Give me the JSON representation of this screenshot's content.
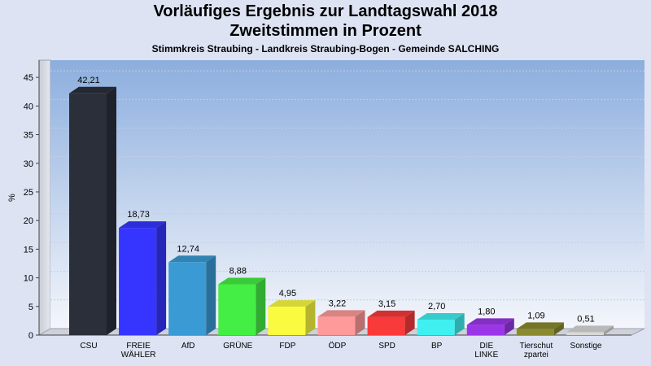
{
  "header": {
    "title": "Vorläufiges Ergebnis zur Landtagswahl 2018",
    "subtitle": "Zweitstimmen in Prozent",
    "region": "Stimmkreis Straubing - Landkreis Straubing-Bogen - Gemeinde SALCHING"
  },
  "chart_data": {
    "type": "bar",
    "ylabel": "%",
    "ylim": [
      0,
      48
    ],
    "yticks": [
      0,
      5,
      10,
      15,
      20,
      25,
      30,
      35,
      40,
      45
    ],
    "grid": true,
    "categories": [
      [
        "CSU"
      ],
      [
        "FREIE",
        "WÄHLER"
      ],
      [
        "AfD"
      ],
      [
        "GRÜNE"
      ],
      [
        "FDP"
      ],
      [
        "ÖDP"
      ],
      [
        "SPD"
      ],
      [
        "BP"
      ],
      [
        "DIE",
        "LINKE"
      ],
      [
        "Tierschut",
        "zpartei"
      ],
      [
        "Sonstige"
      ]
    ],
    "values": [
      42.21,
      18.73,
      12.74,
      8.88,
      4.95,
      3.22,
      3.15,
      2.7,
      1.8,
      1.09,
      0.51
    ],
    "value_labels": [
      "42,21",
      "18,73",
      "12,74",
      "8,88",
      "4,95",
      "3,22",
      "3,15",
      "2,70",
      "1,80",
      "1,09",
      "0,51"
    ],
    "colors": [
      "#2b2f3a",
      "#3535ff",
      "#3a9ad4",
      "#44ee44",
      "#fafa40",
      "#ff9a9a",
      "#f83a3a",
      "#40f0f0",
      "#9a36e8",
      "#8a8a30",
      "#d8d8d8"
    ]
  }
}
